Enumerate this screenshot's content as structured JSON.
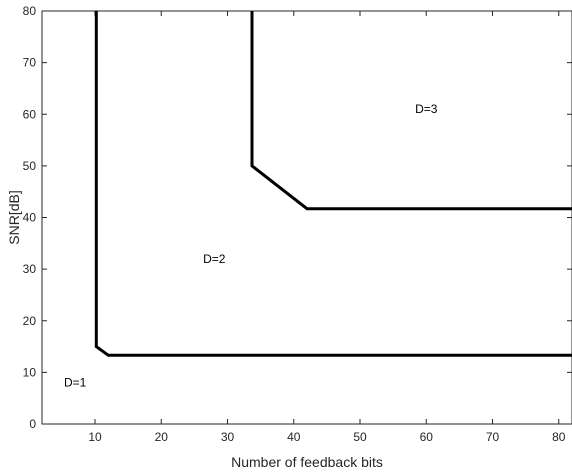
{
  "chart_data": {
    "type": "line",
    "title": "",
    "xlabel": "Number of feedback bits",
    "ylabel": "SNR[dB]",
    "xlim": [
      2,
      82
    ],
    "ylim": [
      0,
      80
    ],
    "xticks": [
      10,
      20,
      30,
      40,
      50,
      60,
      70,
      80
    ],
    "yticks": [
      0,
      10,
      20,
      30,
      40,
      50,
      60,
      70,
      80
    ],
    "grid": false,
    "series": [
      {
        "points": [
          [
            10.2,
            80
          ],
          [
            10.2,
            15
          ],
          [
            12,
            13.3
          ],
          [
            82,
            13.3
          ]
        ]
      },
      {
        "points": [
          [
            33.7,
            80
          ],
          [
            33.7,
            50
          ],
          [
            42,
            41.7
          ],
          [
            82,
            41.7
          ]
        ]
      }
    ],
    "annotations": [
      {
        "text": "D=1",
        "x": 7,
        "y": 8
      },
      {
        "text": "D=2",
        "x": 28,
        "y": 32
      },
      {
        "text": "D=3",
        "x": 60,
        "y": 61
      }
    ],
    "line_color": "#000000"
  }
}
